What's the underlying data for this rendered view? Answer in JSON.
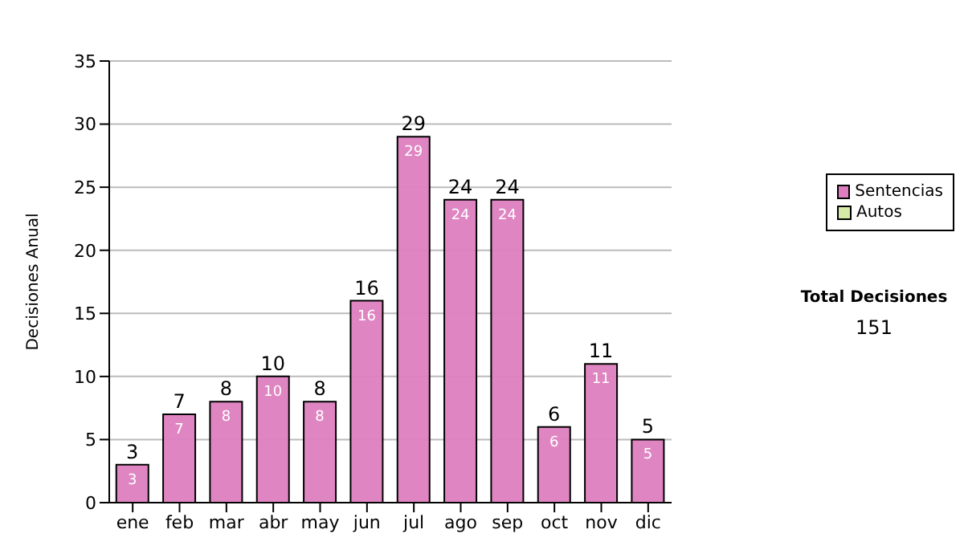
{
  "chart_data": {
    "type": "bar",
    "ylabel": "Decisiones Anual",
    "categories": [
      "ene",
      "feb",
      "mar",
      "abr",
      "may",
      "jun",
      "jul",
      "ago",
      "sep",
      "oct",
      "nov",
      "dic"
    ],
    "series": [
      {
        "name": "Sentencias",
        "color": "#dd7fbf",
        "values": [
          3,
          7,
          8,
          10,
          8,
          16,
          29,
          24,
          24,
          6,
          11,
          5
        ],
        "value_labels": [
          "3",
          "7",
          "8",
          "10",
          "8",
          "16",
          "29",
          "24",
          "24",
          "6",
          "11",
          "5"
        ]
      },
      {
        "name": "Autos",
        "color": "#d8eaa8",
        "values": [
          0,
          0,
          0,
          0,
          0,
          0,
          0,
          0,
          0,
          0,
          0,
          0
        ]
      }
    ],
    "stacked": true,
    "totals": [
      "3",
      "7",
      "8",
      "10",
      "8",
      "16",
      "29",
      "24",
      "24",
      "6",
      "11",
      "5"
    ],
    "ylim": [
      0,
      35
    ],
    "yticks": [
      0,
      5,
      10,
      15,
      20,
      25,
      30,
      35
    ],
    "grid": "y",
    "legend": "right",
    "annotations": [
      "Total Decisiones",
      "151"
    ]
  }
}
